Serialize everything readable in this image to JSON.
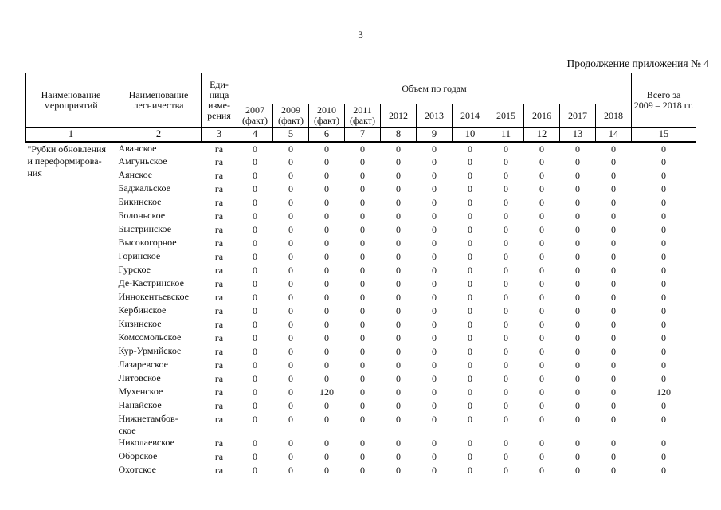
{
  "page": {
    "number": "3",
    "caption": "Продолжение приложения № 4"
  },
  "table": {
    "headers": {
      "activities": "Наименование\nмероприятий",
      "forestry": "Наименование\nлесничества",
      "unit": "Еди-\nница\nизме-\nрения",
      "volume_group": "Объем по годам",
      "years": [
        "2007\n(факт)",
        "2009\n(факт)",
        "2010\n(факт)",
        "2011\n(факт)",
        "2012",
        "2013",
        "2014",
        "2015",
        "2016",
        "2017",
        "2018"
      ],
      "total": "Всего за\n2009 – 2018 гг.",
      "column_numbers": [
        "1",
        "2",
        "3",
        "4",
        "5",
        "6",
        "7",
        "8",
        "9",
        "10",
        "11",
        "12",
        "13",
        "14",
        "15"
      ]
    },
    "activity_label": "\"Рубки обновления\nи переформирова-\nния",
    "rows": [
      {
        "forestry": "Аванское",
        "unit": "га",
        "values": [
          "0",
          "0",
          "0",
          "0",
          "0",
          "0",
          "0",
          "0",
          "0",
          "0",
          "0"
        ],
        "total": "0"
      },
      {
        "forestry": "Амгуньское",
        "unit": "га",
        "values": [
          "0",
          "0",
          "0",
          "0",
          "0",
          "0",
          "0",
          "0",
          "0",
          "0",
          "0"
        ],
        "total": "0"
      },
      {
        "forestry": "Аянское",
        "unit": "га",
        "values": [
          "0",
          "0",
          "0",
          "0",
          "0",
          "0",
          "0",
          "0",
          "0",
          "0",
          "0"
        ],
        "total": "0"
      },
      {
        "forestry": "Баджальское",
        "unit": "га",
        "values": [
          "0",
          "0",
          "0",
          "0",
          "0",
          "0",
          "0",
          "0",
          "0",
          "0",
          "0"
        ],
        "total": "0"
      },
      {
        "forestry": "Бикинское",
        "unit": "га",
        "values": [
          "0",
          "0",
          "0",
          "0",
          "0",
          "0",
          "0",
          "0",
          "0",
          "0",
          "0"
        ],
        "total": "0"
      },
      {
        "forestry": "Болоньское",
        "unit": "га",
        "values": [
          "0",
          "0",
          "0",
          "0",
          "0",
          "0",
          "0",
          "0",
          "0",
          "0",
          "0"
        ],
        "total": "0"
      },
      {
        "forestry": "Быстринское",
        "unit": "га",
        "values": [
          "0",
          "0",
          "0",
          "0",
          "0",
          "0",
          "0",
          "0",
          "0",
          "0",
          "0"
        ],
        "total": "0"
      },
      {
        "forestry": "Высокогорное",
        "unit": "га",
        "values": [
          "0",
          "0",
          "0",
          "0",
          "0",
          "0",
          "0",
          "0",
          "0",
          "0",
          "0"
        ],
        "total": "0"
      },
      {
        "forestry": "Горинское",
        "unit": "га",
        "values": [
          "0",
          "0",
          "0",
          "0",
          "0",
          "0",
          "0",
          "0",
          "0",
          "0",
          "0"
        ],
        "total": "0"
      },
      {
        "forestry": "Гурское",
        "unit": "га",
        "values": [
          "0",
          "0",
          "0",
          "0",
          "0",
          "0",
          "0",
          "0",
          "0",
          "0",
          "0"
        ],
        "total": "0"
      },
      {
        "forestry": "Де-Кастринское",
        "unit": "га",
        "values": [
          "0",
          "0",
          "0",
          "0",
          "0",
          "0",
          "0",
          "0",
          "0",
          "0",
          "0"
        ],
        "total": "0"
      },
      {
        "forestry": "Иннокентьевское",
        "unit": "га",
        "values": [
          "0",
          "0",
          "0",
          "0",
          "0",
          "0",
          "0",
          "0",
          "0",
          "0",
          "0"
        ],
        "total": "0"
      },
      {
        "forestry": "Кербинское",
        "unit": "га",
        "values": [
          "0",
          "0",
          "0",
          "0",
          "0",
          "0",
          "0",
          "0",
          "0",
          "0",
          "0"
        ],
        "total": "0"
      },
      {
        "forestry": "Кизинское",
        "unit": "га",
        "values": [
          "0",
          "0",
          "0",
          "0",
          "0",
          "0",
          "0",
          "0",
          "0",
          "0",
          "0"
        ],
        "total": "0"
      },
      {
        "forestry": "Комсомольское",
        "unit": "га",
        "values": [
          "0",
          "0",
          "0",
          "0",
          "0",
          "0",
          "0",
          "0",
          "0",
          "0",
          "0"
        ],
        "total": "0"
      },
      {
        "forestry": "Кур-Урмийское",
        "unit": "га",
        "values": [
          "0",
          "0",
          "0",
          "0",
          "0",
          "0",
          "0",
          "0",
          "0",
          "0",
          "0"
        ],
        "total": "0"
      },
      {
        "forestry": "Лазаревское",
        "unit": "га",
        "values": [
          "0",
          "0",
          "0",
          "0",
          "0",
          "0",
          "0",
          "0",
          "0",
          "0",
          "0"
        ],
        "total": "0"
      },
      {
        "forestry": "Литовское",
        "unit": "га",
        "values": [
          "0",
          "0",
          "0",
          "0",
          "0",
          "0",
          "0",
          "0",
          "0",
          "0",
          "0"
        ],
        "total": "0"
      },
      {
        "forestry": "Мухенское",
        "unit": "га",
        "values": [
          "0",
          "0",
          "120",
          "0",
          "0",
          "0",
          "0",
          "0",
          "0",
          "0",
          "0"
        ],
        "total": "120"
      },
      {
        "forestry": "Нанайское",
        "unit": "га",
        "values": [
          "0",
          "0",
          "0",
          "0",
          "0",
          "0",
          "0",
          "0",
          "0",
          "0",
          "0"
        ],
        "total": "0"
      },
      {
        "forestry": "Нижнетамбов-\nское",
        "unit": "га",
        "values": [
          "0",
          "0",
          "0",
          "0",
          "0",
          "0",
          "0",
          "0",
          "0",
          "0",
          "0"
        ],
        "total": "0"
      },
      {
        "forestry": "Николаевское",
        "unit": "га",
        "values": [
          "0",
          "0",
          "0",
          "0",
          "0",
          "0",
          "0",
          "0",
          "0",
          "0",
          "0"
        ],
        "total": "0"
      },
      {
        "forestry": "Оборское",
        "unit": "га",
        "values": [
          "0",
          "0",
          "0",
          "0",
          "0",
          "0",
          "0",
          "0",
          "0",
          "0",
          "0"
        ],
        "total": "0"
      },
      {
        "forestry": "Охотское",
        "unit": "га",
        "values": [
          "0",
          "0",
          "0",
          "0",
          "0",
          "0",
          "0",
          "0",
          "0",
          "0",
          "0"
        ],
        "total": "0"
      }
    ]
  }
}
